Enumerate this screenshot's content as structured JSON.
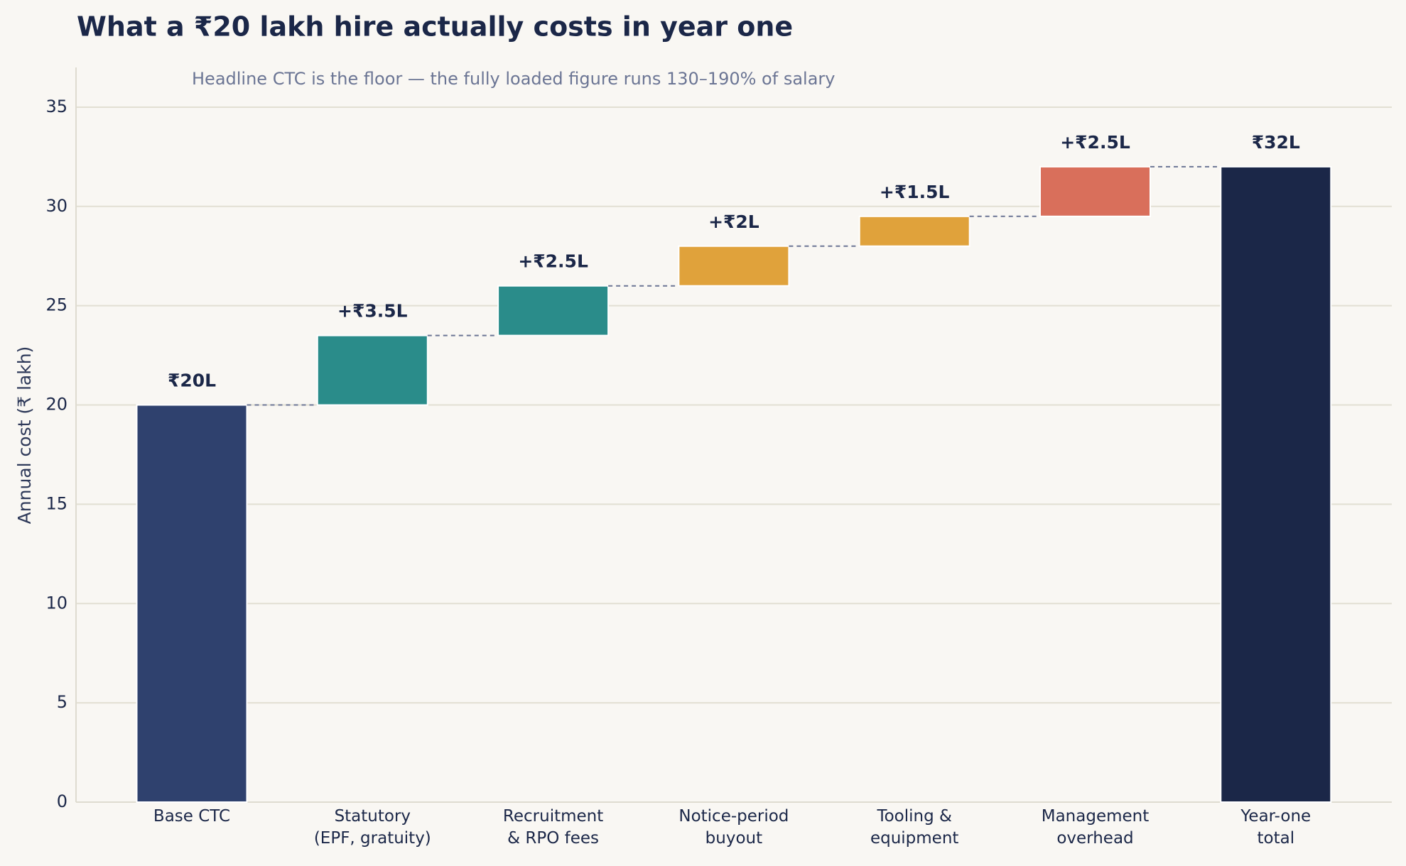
{
  "chart_data": {
    "type": "waterfall",
    "title": "What a ₹20 lakh hire actually costs in year one",
    "subtitle": "Headline CTC is the floor — the fully loaded figure runs 130–190% of salary",
    "y_label": "Annual cost (₹ lakh)",
    "categories": [
      [
        "Base CTC"
      ],
      [
        "Statutory",
        "(EPF, gratuity)"
      ],
      [
        "Recruitment",
        "& RPO fees"
      ],
      [
        "Notice-period",
        "buyout"
      ],
      [
        "Tooling &",
        "equipment"
      ],
      [
        "Management",
        "overhead"
      ],
      [
        "Year-one",
        "total"
      ]
    ],
    "measure": [
      "absolute",
      "relative",
      "relative",
      "relative",
      "relative",
      "relative",
      "total"
    ],
    "values": [
      20,
      3.5,
      2.5,
      2,
      1.5,
      2.5,
      32
    ],
    "value_labels": [
      "₹20L",
      "+₹3.5L",
      "+₹2.5L",
      "+₹2L",
      "+₹1.5L",
      "+₹2.5L",
      "₹32L"
    ],
    "colors": [
      "#2f416e",
      "#2a8c8a",
      "#2a8c8a",
      "#e0a23b",
      "#e0a23b",
      "#d96f5b",
      "#1b2748"
    ],
    "ylim": [
      0,
      37
    ],
    "yticks": [
      0,
      5,
      10,
      15,
      20,
      25,
      30,
      35
    ],
    "grid": true,
    "connectors": true
  }
}
